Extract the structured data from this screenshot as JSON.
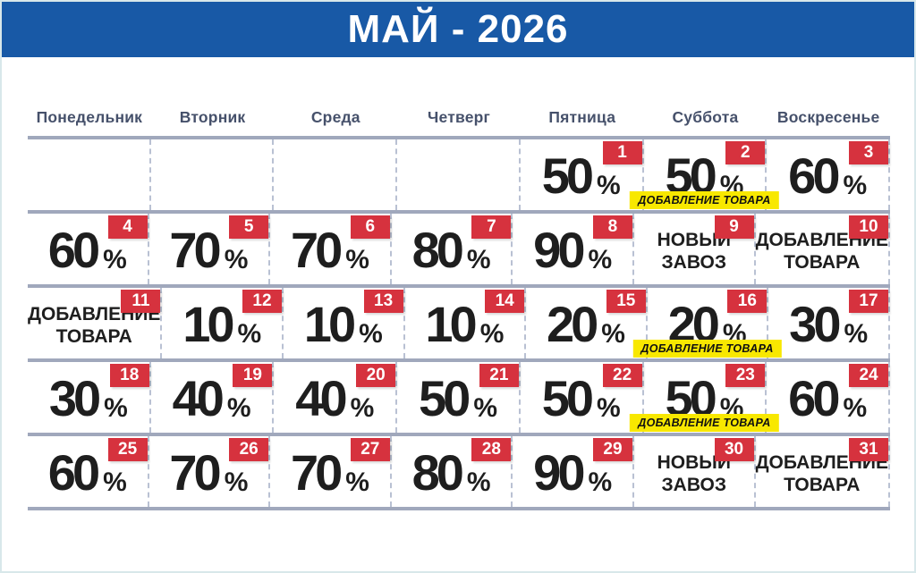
{
  "title": "МАЙ - 2026",
  "percent_sign": "%",
  "weekdays": [
    "Понедельник",
    "Вторник",
    "Среда",
    "Четверг",
    "Пятница",
    "Суббота",
    "Воскресенье"
  ],
  "colors": {
    "page_border": "#d8e8ea",
    "header_bg": "#1859a6",
    "header_text": "#ffffff",
    "weekday_text": "#46516b",
    "row_line": "#a0a8bc",
    "col_dash": "#b9c1d3",
    "badge_bg": "#d6323e",
    "badge_text": "#ffffff",
    "value_text": "#1e1e1e",
    "tag_bg": "#f8e800",
    "tag_text": "#111111"
  },
  "calendar": {
    "weeks": [
      [
        {
          "type": "empty"
        },
        {
          "type": "empty"
        },
        {
          "type": "empty"
        },
        {
          "type": "empty"
        },
        {
          "day": "1",
          "type": "percent",
          "value": "50"
        },
        {
          "day": "2",
          "type": "percent",
          "value": "50",
          "tag": "ДОБАВЛЕНИЕ ТОВАРА"
        },
        {
          "day": "3",
          "type": "percent",
          "value": "60"
        }
      ],
      [
        {
          "day": "4",
          "type": "percent",
          "value": "60"
        },
        {
          "day": "5",
          "type": "percent",
          "value": "70"
        },
        {
          "day": "6",
          "type": "percent",
          "value": "70"
        },
        {
          "day": "7",
          "type": "percent",
          "value": "80"
        },
        {
          "day": "8",
          "type": "percent",
          "value": "90"
        },
        {
          "day": "9",
          "type": "text",
          "text": "НОВЫЙ\nЗАВОЗ"
        },
        {
          "day": "10",
          "type": "text",
          "text": "ДОБАВЛЕНИЕ\nТОВАРА"
        }
      ],
      [
        {
          "day": "11",
          "type": "text",
          "text": "ДОБАВЛЕНИЕ\nТОВАРА"
        },
        {
          "day": "12",
          "type": "percent",
          "value": "10"
        },
        {
          "day": "13",
          "type": "percent",
          "value": "10"
        },
        {
          "day": "14",
          "type": "percent",
          "value": "10"
        },
        {
          "day": "15",
          "type": "percent",
          "value": "20"
        },
        {
          "day": "16",
          "type": "percent",
          "value": "20",
          "tag": "ДОБАВЛЕНИЕ ТОВАРА"
        },
        {
          "day": "17",
          "type": "percent",
          "value": "30"
        }
      ],
      [
        {
          "day": "18",
          "type": "percent",
          "value": "30"
        },
        {
          "day": "19",
          "type": "percent",
          "value": "40"
        },
        {
          "day": "20",
          "type": "percent",
          "value": "40"
        },
        {
          "day": "21",
          "type": "percent",
          "value": "50"
        },
        {
          "day": "22",
          "type": "percent",
          "value": "50"
        },
        {
          "day": "23",
          "type": "percent",
          "value": "50",
          "tag": "ДОБАВЛЕНИЕ ТОВАРА"
        },
        {
          "day": "24",
          "type": "percent",
          "value": "60"
        }
      ],
      [
        {
          "day": "25",
          "type": "percent",
          "value": "60"
        },
        {
          "day": "26",
          "type": "percent",
          "value": "70"
        },
        {
          "day": "27",
          "type": "percent",
          "value": "70"
        },
        {
          "day": "28",
          "type": "percent",
          "value": "80"
        },
        {
          "day": "29",
          "type": "percent",
          "value": "90"
        },
        {
          "day": "30",
          "type": "text",
          "text": "НОВЫЙ\nЗАВОЗ"
        },
        {
          "day": "31",
          "type": "text",
          "text": "ДОБАВЛЕНИЕ\nТОВАРА"
        }
      ]
    ]
  }
}
